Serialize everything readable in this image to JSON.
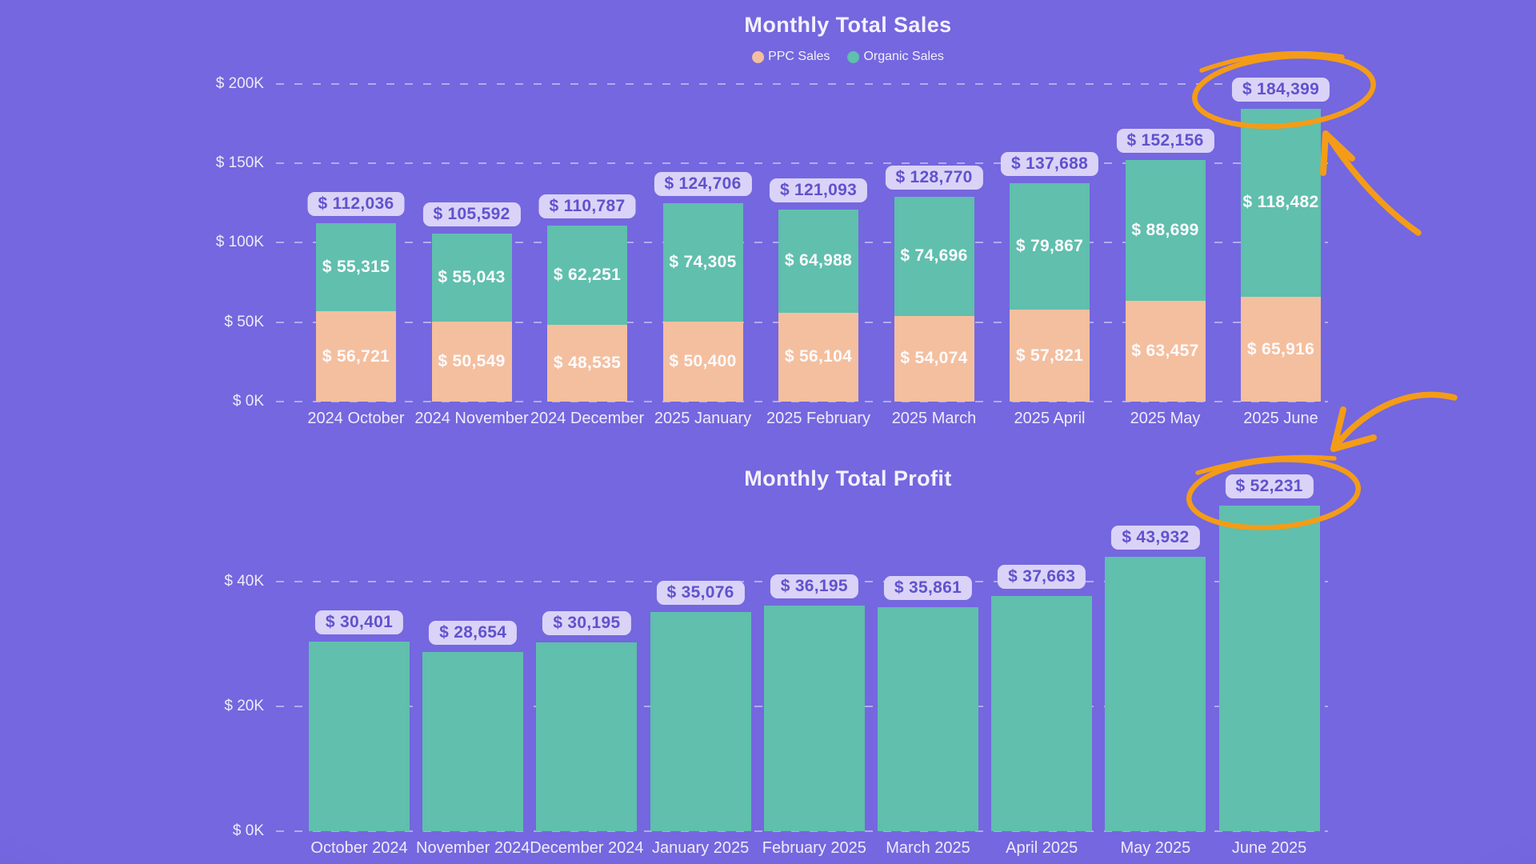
{
  "page": {
    "background_color": "#7467DF",
    "annotation_color": "#F49C17",
    "label_pill_bg": "#DAD3F7",
    "label_pill_text": "#6052CE"
  },
  "chart_data": [
    {
      "type": "bar",
      "stacked": true,
      "title": "Monthly Total Sales",
      "legend_position": "top",
      "grid": "dashed-horizontal",
      "categories": [
        "2024 October",
        "2024 November",
        "2024 December",
        "2025 January",
        "2025 February",
        "2025 March",
        "2025 April",
        "2025 May",
        "2025 June"
      ],
      "series": [
        {
          "name": "PPC Sales",
          "color": "#F4BF9E",
          "values": [
            56721,
            50549,
            48535,
            50400,
            56104,
            54074,
            57821,
            63457,
            65916
          ]
        },
        {
          "name": "Organic Sales",
          "color": "#60BFAD",
          "values": [
            55315,
            55043,
            62251,
            74305,
            64988,
            74696,
            79867,
            88699,
            118482
          ]
        }
      ],
      "totals": [
        112036,
        105592,
        110787,
        124706,
        121093,
        128770,
        137688,
        152156,
        184399
      ],
      "ylim": [
        0,
        200000
      ],
      "yticks": [
        0,
        50000,
        100000,
        150000,
        200000
      ],
      "ytick_labels": [
        "$ 0K",
        "$ 50K",
        "$ 100K",
        "$ 150K",
        "$ 200K"
      ],
      "value_label_format": "$ #,###"
    },
    {
      "type": "bar",
      "stacked": false,
      "title": "Monthly Total Profit",
      "grid": "dashed-horizontal",
      "categories": [
        "October 2024",
        "November 2024",
        "December 2024",
        "January 2025",
        "February 2025",
        "March 2025",
        "April 2025",
        "May 2025",
        "June 2025"
      ],
      "bar_color": "#60BFAD",
      "values": [
        30401,
        28654,
        30195,
        35076,
        36195,
        35861,
        37663,
        43932,
        52231
      ],
      "ylim": [
        0,
        56000
      ],
      "yticks": [
        0,
        20000,
        40000
      ],
      "ytick_labels": [
        "$ 0K",
        "$ 20K",
        "$ 40K"
      ],
      "value_label_format": "$ #,###"
    }
  ],
  "annotations": [
    {
      "name": "sales-june-circle",
      "shape": "hand-drawn-ellipse",
      "around": "$ 184,399",
      "color": "#F49C17"
    },
    {
      "name": "sales-june-arrow",
      "shape": "curved-arrow",
      "points_to": "2025 June sales total",
      "color": "#F49C17"
    },
    {
      "name": "profit-june-circle",
      "shape": "hand-drawn-ellipse",
      "around": "$ 52,231",
      "color": "#F49C17"
    },
    {
      "name": "profit-june-arrow",
      "shape": "curved-arrow",
      "points_to": "June 2025 profit total",
      "color": "#F49C17"
    }
  ]
}
